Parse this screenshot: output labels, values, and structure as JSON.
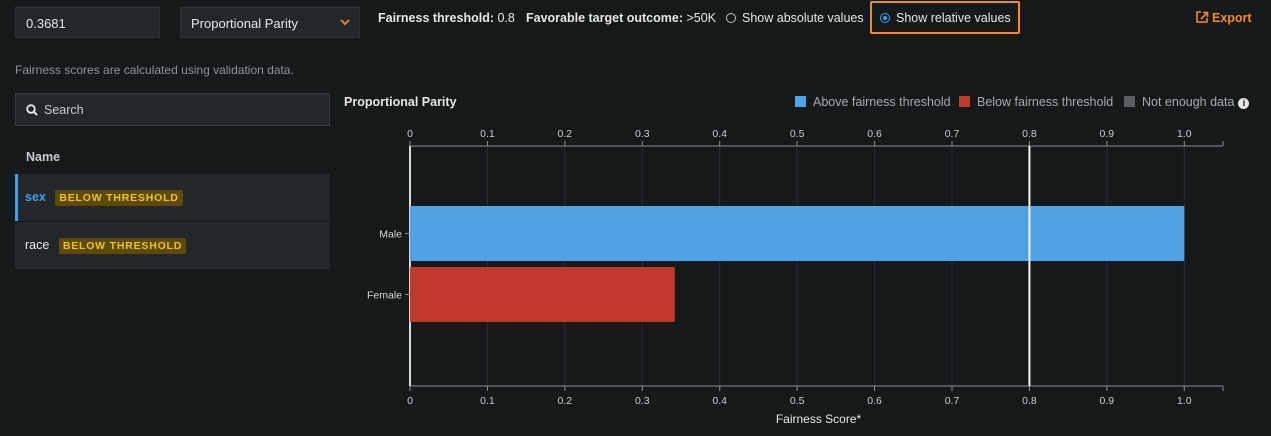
{
  "toolbar": {
    "threshold_input_value": "0.3681",
    "metric_select": "Proportional Parity",
    "fairness_threshold_label": "Fairness threshold:",
    "fairness_threshold_value": "0.8",
    "favorable_outcome_label": "Favorable target outcome:",
    "favorable_outcome_value": ">50K",
    "absolute_label": "Show absolute values",
    "relative_label": "Show relative values",
    "export_label": "Export"
  },
  "sidebar": {
    "note": "Fairness scores are calculated using validation data.",
    "search_placeholder": "Search",
    "column_header": "Name",
    "items": [
      {
        "name": "sex",
        "badge": "BELOW THRESHOLD",
        "selected": true
      },
      {
        "name": "race",
        "badge": "BELOW THRESHOLD",
        "selected": false
      }
    ]
  },
  "legend": {
    "above": "Above fairness threshold",
    "below": "Below fairness threshold",
    "not_enough": "Not enough data",
    "colors": {
      "above": "#4ea3e6",
      "below": "#c0392b",
      "not_enough": "#5a5e60"
    }
  },
  "chart_data": {
    "type": "bar",
    "orientation": "horizontal",
    "title": "Proportional Parity",
    "xlabel": "Fairness Score*",
    "categories": [
      "Male",
      "Female"
    ],
    "values": [
      1.0,
      0.342
    ],
    "statuses": [
      "above",
      "below"
    ],
    "xlim": [
      0,
      1.05
    ],
    "ticks": [
      "0",
      "0.1",
      "0.2",
      "0.3",
      "0.4",
      "0.5",
      "0.6",
      "0.7",
      "0.8",
      "0.9",
      "1.0"
    ],
    "threshold": 0.8,
    "grid": true
  }
}
